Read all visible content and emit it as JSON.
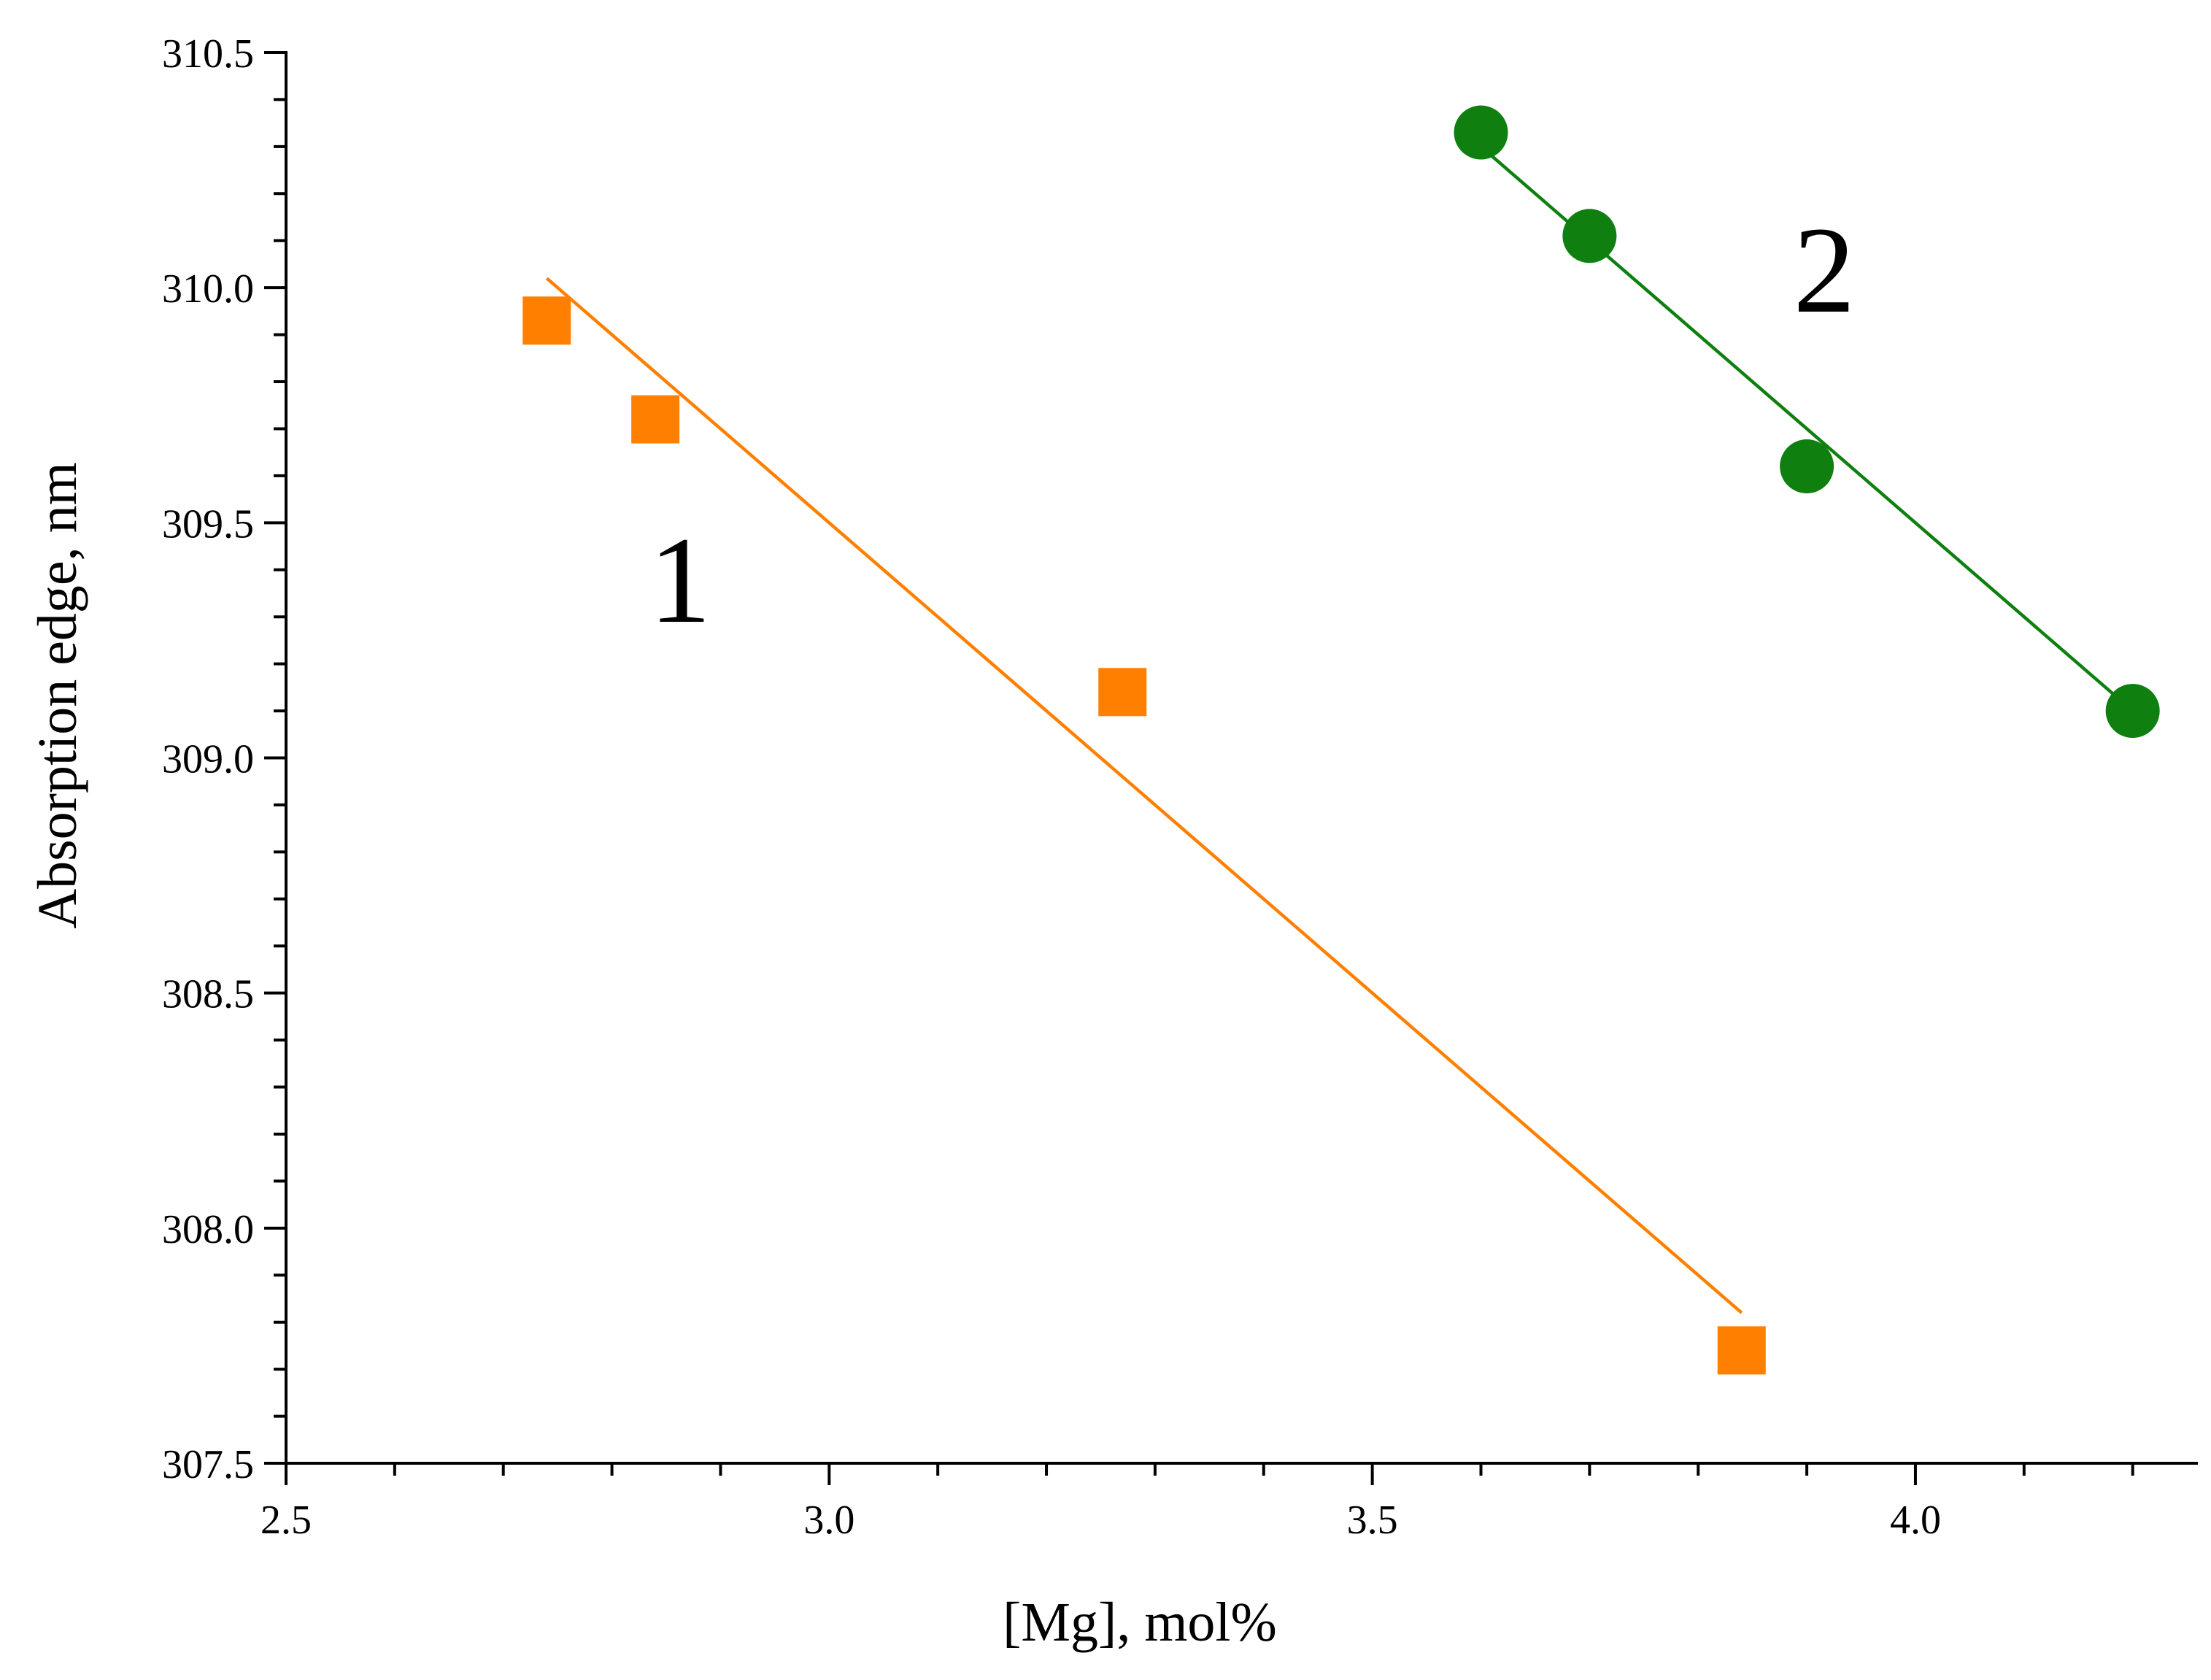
{
  "chart_data": {
    "type": "scatter",
    "xlabel": "[Mg], mol%",
    "ylabel": "Absorption edge, nm",
    "xlim": [
      2.5,
      4.26
    ],
    "ylim": [
      307.5,
      310.5
    ],
    "x_ticks": [
      "2.5",
      "3.0",
      "3.5",
      "4.0"
    ],
    "y_ticks": [
      "307.5",
      "308.0",
      "308.5",
      "309.0",
      "309.5",
      "310.0",
      "310.5"
    ],
    "grid": false,
    "legend": "none",
    "series": [
      {
        "name": "1",
        "label": "1",
        "marker": "square",
        "color": "#FF8000",
        "points": [
          {
            "x": 2.74,
            "y": 309.93
          },
          {
            "x": 2.84,
            "y": 309.72
          },
          {
            "x": 3.27,
            "y": 309.14
          },
          {
            "x": 3.84,
            "y": 307.74
          }
        ],
        "fit": {
          "x1": 2.74,
          "y1": 310.02,
          "x2": 3.84,
          "y2": 307.82
        }
      },
      {
        "name": "2",
        "label": "2",
        "marker": "circle",
        "color": "#0F7F0F",
        "points": [
          {
            "x": 3.6,
            "y": 310.33
          },
          {
            "x": 3.7,
            "y": 310.11
          },
          {
            "x": 3.9,
            "y": 309.62
          },
          {
            "x": 4.2,
            "y": 309.1
          }
        ],
        "fit": {
          "x1": 3.6,
          "y1": 310.3,
          "x2": 4.2,
          "y2": 309.1
        }
      }
    ]
  }
}
